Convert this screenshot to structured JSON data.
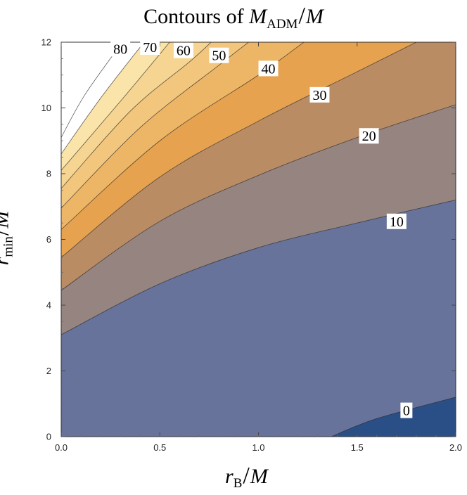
{
  "chart_data": {
    "type": "contour",
    "title": {
      "prefix": "Contours of",
      "var": "M",
      "sub": "ADM",
      "slash": "/",
      "den": "M"
    },
    "xlabel": {
      "var": "r",
      "sub": "B",
      "slash": "/",
      "den": "M"
    },
    "ylabel": {
      "var": "r",
      "sub": "min",
      "slash": "/",
      "den": "M"
    },
    "xlim": [
      0,
      2
    ],
    "ylim": [
      0,
      12
    ],
    "x_ticks": [
      "0.0",
      "0.5",
      "1.0",
      "1.5",
      "2.0"
    ],
    "y_ticks": [
      "0",
      "2",
      "4",
      "6",
      "8",
      "10",
      "12"
    ],
    "levels": [
      0,
      10,
      20,
      30,
      40,
      50,
      60,
      70,
      80,
      90
    ],
    "level_labels": [
      "0",
      "10",
      "20",
      "30",
      "40",
      "50",
      "60",
      "70",
      "80"
    ],
    "contour_lines": [
      {
        "level": 0,
        "points": [
          [
            1.37,
            0
          ],
          [
            1.6,
            0.55
          ],
          [
            2.0,
            1.2
          ]
        ]
      },
      {
        "level": 10,
        "points": [
          [
            0,
            3.1
          ],
          [
            0.5,
            4.65
          ],
          [
            1.0,
            5.75
          ],
          [
            1.5,
            6.5
          ],
          [
            2.0,
            7.2
          ]
        ]
      },
      {
        "level": 20,
        "points": [
          [
            0,
            4.45
          ],
          [
            0.5,
            6.55
          ],
          [
            1.0,
            7.95
          ],
          [
            1.5,
            9.1
          ],
          [
            2.0,
            10.1
          ]
        ]
      },
      {
        "level": 30,
        "points": [
          [
            0,
            5.45
          ],
          [
            0.5,
            7.9
          ],
          [
            1.0,
            9.6
          ],
          [
            1.5,
            11.1
          ],
          [
            1.8,
            12
          ]
        ]
      },
      {
        "level": 40,
        "points": [
          [
            0,
            6.3
          ],
          [
            0.5,
            9.0
          ],
          [
            1.0,
            11.0
          ],
          [
            1.23,
            12
          ]
        ]
      },
      {
        "level": 50,
        "points": [
          [
            0,
            6.95
          ],
          [
            0.4,
            9.4
          ],
          [
            0.8,
            11.3
          ],
          [
            0.95,
            12
          ]
        ]
      },
      {
        "level": 60,
        "points": [
          [
            0,
            7.55
          ],
          [
            0.35,
            9.9
          ],
          [
            0.65,
            11.4
          ],
          [
            0.76,
            12
          ]
        ]
      },
      {
        "level": 70,
        "points": [
          [
            0,
            8.1
          ],
          [
            0.3,
            10.2
          ],
          [
            0.55,
            12
          ]
        ]
      },
      {
        "level": 80,
        "points": [
          [
            0,
            8.6
          ],
          [
            0.2,
            10.3
          ],
          [
            0.42,
            12
          ]
        ]
      },
      {
        "level": 90,
        "points": [
          [
            0,
            9.1
          ],
          [
            0.12,
            10.4
          ],
          [
            0.31,
            12
          ]
        ]
      }
    ],
    "label_positions": [
      {
        "text": "0",
        "x": 1.75,
        "y": 0.8
      },
      {
        "text": "10",
        "x": 1.7,
        "y": 6.55
      },
      {
        "text": "20",
        "x": 1.56,
        "y": 9.15
      },
      {
        "text": "30",
        "x": 1.31,
        "y": 10.4
      },
      {
        "text": "40",
        "x": 1.05,
        "y": 11.2
      },
      {
        "text": "50",
        "x": 0.8,
        "y": 11.6
      },
      {
        "text": "60",
        "x": 0.62,
        "y": 11.75
      },
      {
        "text": "70",
        "x": 0.45,
        "y": 11.85
      },
      {
        "text": "80",
        "x": 0.3,
        "y": 11.8
      }
    ],
    "fill_colors": [
      "#2a4f86",
      "#3d5f9d",
      "#67739a",
      "#968480",
      "#b98c64",
      "#e6a24f",
      "#edb667",
      "#f2c67d",
      "#f6d592",
      "#fae4a9",
      "#ffffff"
    ],
    "grid": false
  }
}
